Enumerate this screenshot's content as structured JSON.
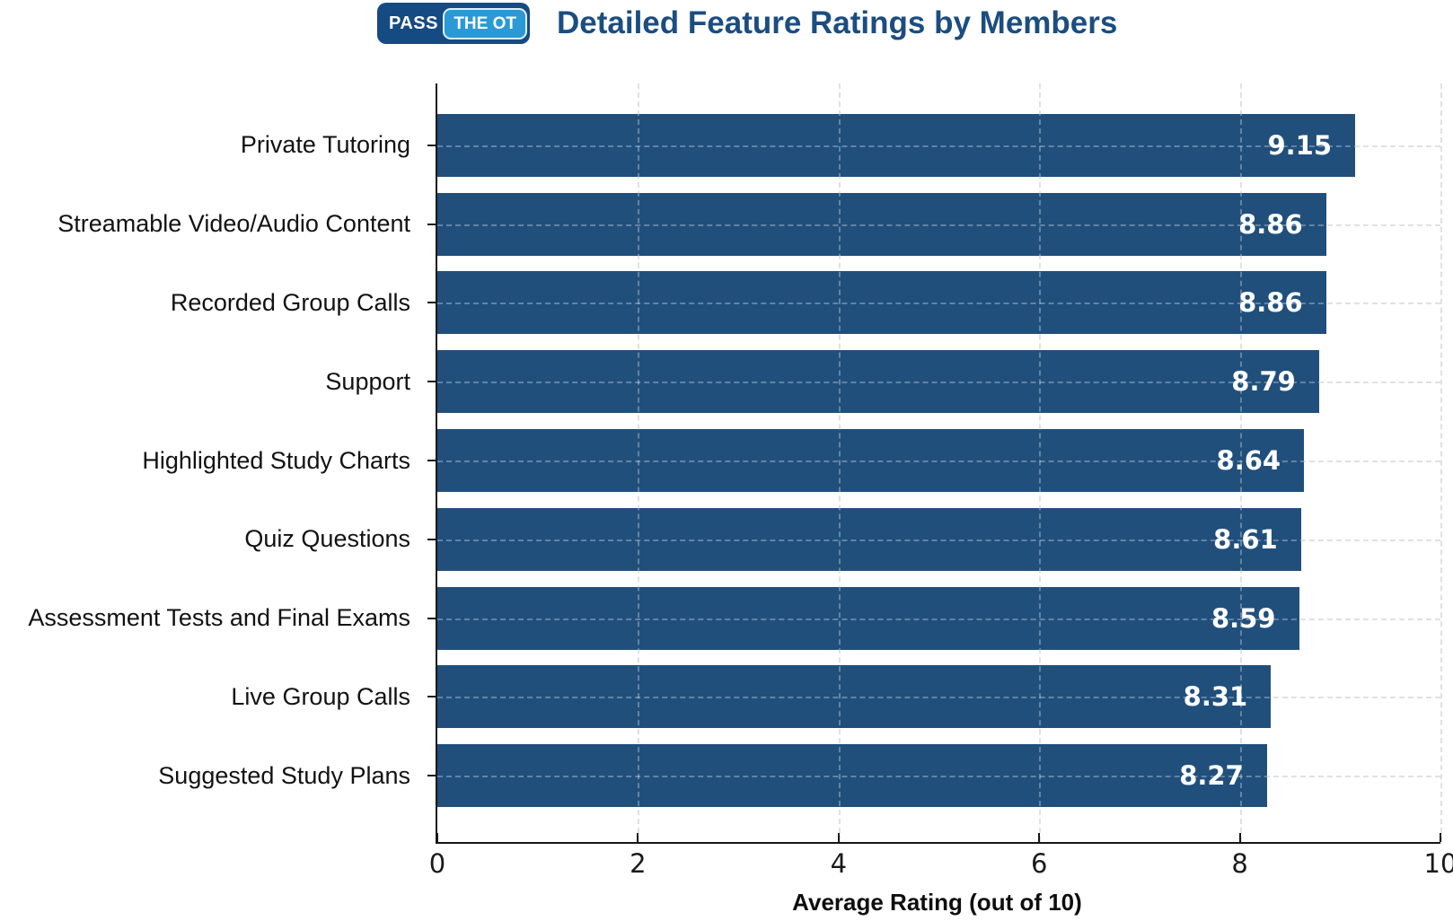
{
  "header": {
    "logo": {
      "pass": "PASS",
      "the_ot": "THE OT"
    },
    "title": "Detailed Feature Ratings by Members"
  },
  "chart_data": {
    "type": "bar",
    "orientation": "horizontal",
    "title": "Detailed Feature Ratings by Members",
    "categories": [
      "Private Tutoring",
      "Streamable Video/Audio Content",
      "Recorded Group Calls",
      "Support",
      "Highlighted Study Charts",
      "Quiz Questions",
      "Assessment Tests and Final Exams",
      "Live Group Calls",
      "Suggested Study Plans"
    ],
    "values": [
      9.15,
      8.86,
      8.86,
      8.79,
      8.64,
      8.61,
      8.59,
      8.31,
      8.27
    ],
    "value_labels": [
      "9.15",
      "8.86",
      "8.86",
      "8.79",
      "8.64",
      "8.61",
      "8.59",
      "8.31",
      "8.27"
    ],
    "xlabel": "Average Rating (out of 10)",
    "xlim": [
      0,
      10
    ],
    "xticks": [
      0,
      2,
      4,
      6,
      8,
      10
    ],
    "grid": {
      "vertical": true,
      "horizontal": true,
      "style": "dashed"
    },
    "legend": null,
    "value_labels_inside": true
  },
  "colors": {
    "bar": "#204f7c",
    "title": "#1b4d80",
    "logo_dark": "#164a82",
    "logo_light": "#2b99d3",
    "axis": "#161616",
    "gridline": "#d5d5d5",
    "label_text": "#121212",
    "value_text": "#ffffff",
    "background": "#ffffff"
  }
}
